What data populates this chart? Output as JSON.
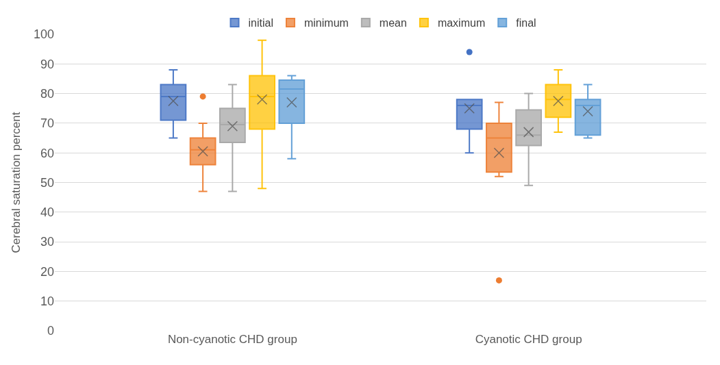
{
  "chart_data": {
    "type": "box",
    "ylabel": "Cerebral saturation percent",
    "categories": [
      "Non-cyanotic CHD group",
      "Cyanotic CHD group"
    ],
    "ylim": [
      0,
      100
    ],
    "yticks": [
      0,
      10,
      20,
      30,
      40,
      50,
      60,
      70,
      80,
      90,
      100
    ],
    "grid": "y",
    "legend": "top",
    "marker": "cross",
    "series": [
      {
        "name": "initial",
        "color": "#4472c4",
        "boxes": [
          {
            "low": 65,
            "q1": 71,
            "median": 79,
            "q3": 83,
            "high": 88,
            "mean": 77.5
          },
          {
            "low": 60,
            "q1": 68,
            "median": 76,
            "q3": 78,
            "high": 78,
            "mean": 75,
            "outliers": [
              94
            ]
          }
        ]
      },
      {
        "name": "minimum",
        "color": "#ed7d31",
        "boxes": [
          {
            "low": 47,
            "q1": 56,
            "median": 61,
            "q3": 65,
            "high": 70,
            "mean": 60.5,
            "outliers": [
              79
            ]
          },
          {
            "low": 52,
            "q1": 53.5,
            "median": 65,
            "q3": 70,
            "high": 77,
            "mean": 60,
            "outliers": [
              17
            ]
          }
        ]
      },
      {
        "name": "mean",
        "color": "#a5a5a5",
        "boxes": [
          {
            "low": 47,
            "q1": 63.5,
            "median": 69.5,
            "q3": 75,
            "high": 83,
            "mean": 69
          },
          {
            "low": 49,
            "q1": 62.5,
            "median": 66,
            "q3": 74.5,
            "high": 80,
            "mean": 67
          }
        ]
      },
      {
        "name": "maximum",
        "color": "#ffc000",
        "boxes": [
          {
            "low": 48,
            "q1": 68,
            "median": 79,
            "q3": 86,
            "high": 98,
            "mean": 78
          },
          {
            "low": 67,
            "q1": 72,
            "median": 78,
            "q3": 83,
            "high": 88,
            "mean": 77.5
          }
        ]
      },
      {
        "name": "final",
        "color": "#5b9bd5",
        "boxes": [
          {
            "low": 58,
            "q1": 70,
            "median": 81.5,
            "q3": 84.5,
            "high": 86,
            "mean": 77
          },
          {
            "low": 65,
            "q1": 66,
            "median": 76,
            "q3": 78,
            "high": 83,
            "mean": 74
          }
        ]
      }
    ]
  }
}
